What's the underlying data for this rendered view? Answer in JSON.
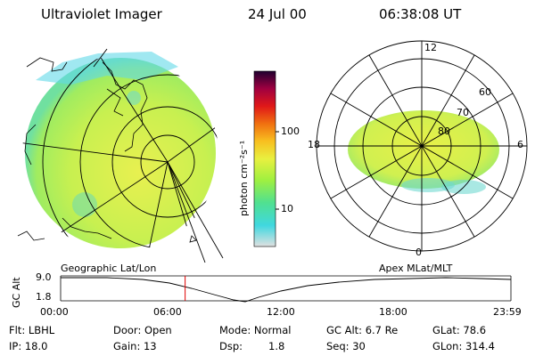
{
  "header": {
    "instrument": "Ultraviolet Imager",
    "date": "24 Jul 00",
    "time": "06:38:08 UT"
  },
  "colorbar": {
    "unit_label": "photon cm⁻²s⁻¹",
    "ticks": [
      "100",
      "10"
    ],
    "stops": [
      "#d8d8d8",
      "#40d8e0",
      "#60e880",
      "#a0f040",
      "#e8f040",
      "#f8c020",
      "#f07010",
      "#e01818",
      "#a00040",
      "#200030"
    ]
  },
  "left_panel": {
    "label": "Geographic Lat/Lon"
  },
  "right_panel": {
    "label": "Apex MLat/MLT",
    "mlt_labels": {
      "top": "12",
      "left": "18",
      "right": "6",
      "bottom": "0"
    },
    "mlat_labels": [
      "60",
      "70",
      "80"
    ]
  },
  "timeline": {
    "y_label": "GC Alt",
    "y_ticks": [
      "9.0",
      "1.8"
    ],
    "x_ticks": [
      "00:00",
      "06:00",
      "12:00",
      "18:00",
      "23:59"
    ],
    "current_time_fraction": 0.2765
  },
  "info": {
    "row1": {
      "filter": "Flt: LBHL",
      "door": "Door: Open",
      "mode": "Mode: Normal",
      "gc_alt": "GC Alt: 6.7 Re",
      "glat": "GLat: 78.6"
    },
    "row2": {
      "ip": "IP: 18.0",
      "gain": "Gain: 13",
      "dsp_label": "Dsp:",
      "dsp_value": "1.8",
      "seq": "Seq: 30",
      "glon": "GLon: 314.4"
    }
  }
}
